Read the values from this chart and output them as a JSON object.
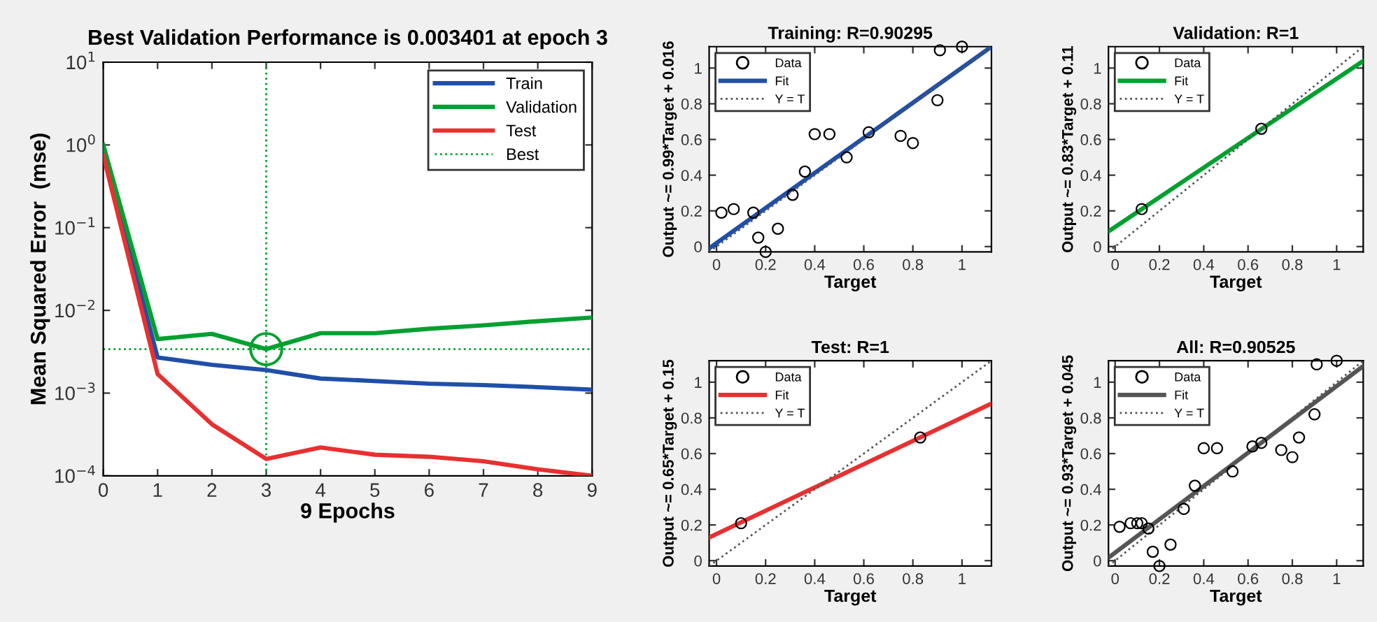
{
  "chart_data": [
    {
      "type": "line",
      "title": "Best Validation Performance is 0.003401 at epoch 3",
      "xlabel": "9 Epochs",
      "ylabel": "Mean Squared Error  (mse)",
      "log": "y",
      "legend": "top right",
      "x": [
        0,
        1,
        2,
        3,
        4,
        5,
        6,
        7,
        8,
        9
      ],
      "xlim": [
        0,
        9
      ],
      "xticks": [
        0,
        1,
        2,
        3,
        4,
        5,
        6,
        7,
        8,
        9
      ],
      "ylim": [
        0.0001,
        10
      ],
      "yticks": [
        {
          "value": 0.0001,
          "label": "10$^{−4}$"
        },
        {
          "value": 0.001,
          "label": "10$^{−3}$"
        },
        {
          "value": 0.01,
          "label": "10$^{−2}$"
        },
        {
          "value": 0.1,
          "label": "10$^{−1}$"
        },
        {
          "value": 1,
          "label": "10$^{0}$"
        },
        {
          "value": 10,
          "label": "10$^{1}$"
        }
      ],
      "series": [
        {
          "name": "Train",
          "color": "#1f4fa8",
          "values": [
            0.85,
            0.0027,
            0.0022,
            0.0019,
            0.0015,
            0.0014,
            0.0013,
            0.00125,
            0.00118,
            0.0011
          ]
        },
        {
          "name": "Validation",
          "color": "#00a030",
          "values": [
            1.0,
            0.0045,
            0.0052,
            0.003401,
            0.0053,
            0.0053,
            0.006,
            0.0066,
            0.0074,
            0.0082
          ]
        },
        {
          "name": "Test",
          "color": "#e83030",
          "values": [
            0.75,
            0.0017,
            0.00042,
            0.00016,
            0.00022,
            0.00018,
            0.00017,
            0.00015,
            0.00012,
            0.0001
          ]
        },
        {
          "type": "scatter",
          "color": "#00a030",
          "marker": "circle",
          "x": [
            3
          ],
          "values": [
            0.003401
          ]
        }
      ],
      "ref_lines": [
        {
          "axis": "y",
          "value": 0.003401,
          "label": "Best",
          "color": "#00a030",
          "line_style": "dotted"
        },
        {
          "axis": "x",
          "value": 3,
          "color": "#00a030",
          "line_style": "dotted"
        }
      ]
    },
    {
      "type": "scatter",
      "title": "Training: R=0.90295",
      "xlabel": "Target",
      "ylabel": "Output ~= 0.99*Target + 0.016",
      "legend": "top left",
      "xlim": [
        -0.03,
        1.12
      ],
      "ylim": [
        -0.03,
        1.12
      ],
      "xticks": [
        0,
        0.2,
        0.4,
        0.6,
        0.8,
        1
      ],
      "yticks": [
        0,
        0.2,
        0.4,
        0.6,
        0.8,
        1
      ],
      "series": [
        {
          "name": "Data",
          "type": "scatter",
          "marker": "circle",
          "color": "#000000",
          "x": [
            0.02,
            0.07,
            0.15,
            0.17,
            0.2,
            0.25,
            0.31,
            0.36,
            0.4,
            0.46,
            0.53,
            0.62,
            0.75,
            0.8,
            0.9,
            0.91,
            1.0
          ],
          "values": [
            0.19,
            0.21,
            0.19,
            0.05,
            -0.03,
            0.1,
            0.29,
            0.42,
            0.63,
            0.63,
            0.5,
            0.64,
            0.62,
            0.58,
            0.82,
            1.1,
            1.12
          ]
        },
        {
          "name": "Fit",
          "type": "line",
          "line_style": "solid",
          "color": "#1f4fa8",
          "x": [
            -0.03,
            1.12
          ],
          "values": [
            -0.01,
            1.12
          ]
        },
        {
          "name": "Y = T",
          "type": "line",
          "line_style": "dotted",
          "color": "#555555",
          "x": [
            -0.03,
            1.12
          ],
          "values": [
            -0.03,
            1.12
          ]
        }
      ]
    },
    {
      "type": "scatter",
      "title": "Validation: R=1",
      "xlabel": "Target",
      "ylabel": "Output ~= 0.83*Target + 0.11",
      "legend": "top left",
      "xlim": [
        -0.03,
        1.12
      ],
      "ylim": [
        -0.03,
        1.12
      ],
      "xticks": [
        0,
        0.2,
        0.4,
        0.6,
        0.8,
        1
      ],
      "yticks": [
        0,
        0.2,
        0.4,
        0.6,
        0.8,
        1
      ],
      "series": [
        {
          "name": "Data",
          "type": "scatter",
          "marker": "circle",
          "color": "#000000",
          "x": [
            0.12,
            0.66
          ],
          "values": [
            0.21,
            0.66
          ]
        },
        {
          "name": "Fit",
          "type": "line",
          "line_style": "solid",
          "color": "#00a030",
          "x": [
            -0.03,
            1.12
          ],
          "values": [
            0.085,
            1.04
          ]
        },
        {
          "name": "Y = T",
          "type": "line",
          "line_style": "dotted",
          "color": "#555555",
          "x": [
            -0.03,
            1.12
          ],
          "values": [
            -0.03,
            1.12
          ]
        }
      ]
    },
    {
      "type": "scatter",
      "title": "Test: R=1",
      "xlabel": "Target",
      "ylabel": "Output ~= 0.65*Target + 0.15",
      "legend": "top left",
      "xlim": [
        -0.03,
        1.12
      ],
      "ylim": [
        -0.03,
        1.12
      ],
      "xticks": [
        0,
        0.2,
        0.4,
        0.6,
        0.8,
        1
      ],
      "yticks": [
        0,
        0.2,
        0.4,
        0.6,
        0.8,
        1
      ],
      "series": [
        {
          "name": "Data",
          "type": "scatter",
          "marker": "circle",
          "color": "#000000",
          "x": [
            0.1,
            0.83
          ],
          "values": [
            0.21,
            0.69
          ]
        },
        {
          "name": "Fit",
          "type": "line",
          "line_style": "solid",
          "color": "#e83030",
          "x": [
            -0.03,
            1.12
          ],
          "values": [
            0.13,
            0.88
          ]
        },
        {
          "name": "Y = T",
          "type": "line",
          "line_style": "dotted",
          "color": "#555555",
          "x": [
            -0.03,
            1.12
          ],
          "values": [
            -0.03,
            1.12
          ]
        }
      ]
    },
    {
      "type": "scatter",
      "title": "All: R=0.90525",
      "xlabel": "Target",
      "ylabel": "Output ~= 0.93*Target + 0.045",
      "legend": "top left",
      "xlim": [
        -0.03,
        1.12
      ],
      "ylim": [
        -0.03,
        1.12
      ],
      "xticks": [
        0,
        0.2,
        0.4,
        0.6,
        0.8,
        1
      ],
      "yticks": [
        0,
        0.2,
        0.4,
        0.6,
        0.8,
        1
      ],
      "series": [
        {
          "name": "Data",
          "type": "scatter",
          "marker": "circle",
          "color": "#000000",
          "x": [
            0.02,
            0.07,
            0.1,
            0.12,
            0.15,
            0.17,
            0.2,
            0.25,
            0.31,
            0.36,
            0.4,
            0.46,
            0.53,
            0.62,
            0.66,
            0.75,
            0.8,
            0.83,
            0.9,
            0.91,
            1.0
          ],
          "values": [
            0.19,
            0.21,
            0.21,
            0.21,
            0.18,
            0.05,
            -0.03,
            0.09,
            0.29,
            0.42,
            0.63,
            0.63,
            0.5,
            0.64,
            0.66,
            0.62,
            0.58,
            0.69,
            0.82,
            1.1,
            1.12
          ]
        },
        {
          "name": "Fit",
          "type": "line",
          "line_style": "solid",
          "color": "#555555",
          "x": [
            -0.03,
            1.12
          ],
          "values": [
            0.017,
            1.09
          ]
        },
        {
          "name": "Y = T",
          "type": "line",
          "line_style": "dotted",
          "color": "#555555",
          "x": [
            -0.03,
            1.12
          ],
          "values": [
            -0.03,
            1.12
          ]
        }
      ]
    }
  ]
}
